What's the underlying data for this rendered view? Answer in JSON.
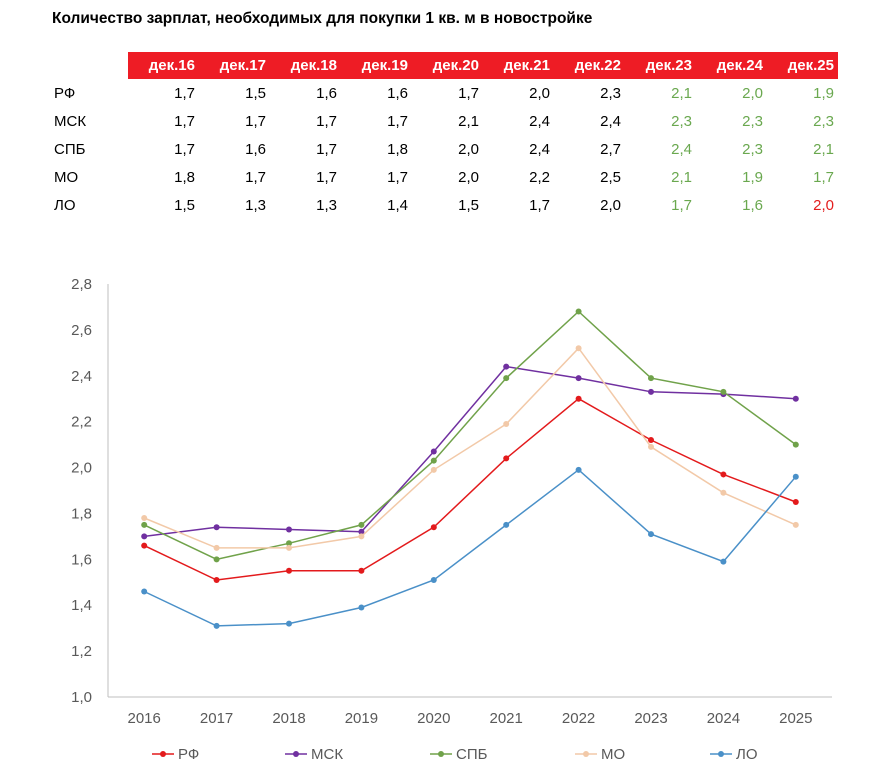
{
  "title": "Количество зарплат, необходимых для покупки 1 кв. м в новостройке",
  "table": {
    "headers": [
      "дек.16",
      "дек.17",
      "дек.18",
      "дек.19",
      "дек.20",
      "дек.21",
      "дек.22",
      "дек.23",
      "дек.24",
      "дек.25"
    ],
    "rows": [
      {
        "label": "РФ",
        "values": [
          "1,7",
          "1,5",
          "1,6",
          "1,6",
          "1,7",
          "2,0",
          "2,3",
          "2,1",
          "2,0",
          "1,9"
        ]
      },
      {
        "label": "МСК",
        "values": [
          "1,7",
          "1,7",
          "1,7",
          "1,7",
          "2,1",
          "2,4",
          "2,4",
          "2,3",
          "2,3",
          "2,3"
        ]
      },
      {
        "label": "СПБ",
        "values": [
          "1,7",
          "1,6",
          "1,7",
          "1,8",
          "2,0",
          "2,4",
          "2,7",
          "2,4",
          "2,3",
          "2,1"
        ]
      },
      {
        "label": "МО",
        "values": [
          "1,8",
          "1,7",
          "1,7",
          "1,7",
          "2,0",
          "2,2",
          "2,5",
          "2,1",
          "1,9",
          "1,7"
        ]
      },
      {
        "label": "ЛО",
        "values": [
          "1,5",
          "1,3",
          "1,3",
          "1,4",
          "1,5",
          "1,7",
          "2,0",
          "1,7",
          "1,6",
          "2,0"
        ]
      }
    ],
    "colors": {
      "header_bg": "#ee1c25",
      "forecast": "#6aa84f",
      "highlight": "#e31d1d"
    }
  },
  "chart_data": {
    "type": "line",
    "title": "",
    "xlabel": "",
    "ylabel": "",
    "x": [
      "2016",
      "2017",
      "2018",
      "2019",
      "2020",
      "2021",
      "2022",
      "2023",
      "2024",
      "2025"
    ],
    "ylim": [
      1.0,
      2.8
    ],
    "yticks": [
      "1,0",
      "1,2",
      "1,4",
      "1,6",
      "1,8",
      "2,0",
      "2,2",
      "2,4",
      "2,6",
      "2,8"
    ],
    "grid": false,
    "legend": "bottom",
    "series": [
      {
        "name": "РФ",
        "color": "#e31a1c",
        "values": [
          1.66,
          1.51,
          1.55,
          1.55,
          1.74,
          2.04,
          2.3,
          2.12,
          1.97,
          1.85
        ]
      },
      {
        "name": "МСК",
        "color": "#7030a0",
        "values": [
          1.7,
          1.74,
          1.73,
          1.72,
          2.07,
          2.44,
          2.39,
          2.33,
          2.32,
          2.3
        ]
      },
      {
        "name": "СПБ",
        "color": "#70a24a",
        "values": [
          1.75,
          1.6,
          1.67,
          1.75,
          2.03,
          2.39,
          2.68,
          2.39,
          2.33,
          2.1
        ]
      },
      {
        "name": "МО",
        "color": "#f2c9a8",
        "values": [
          1.78,
          1.65,
          1.65,
          1.7,
          1.99,
          2.19,
          2.52,
          2.09,
          1.89,
          1.75
        ]
      },
      {
        "name": "ЛО",
        "color": "#4a90c8",
        "values": [
          1.46,
          1.31,
          1.32,
          1.39,
          1.51,
          1.75,
          1.99,
          1.71,
          1.59,
          1.96
        ]
      }
    ]
  }
}
